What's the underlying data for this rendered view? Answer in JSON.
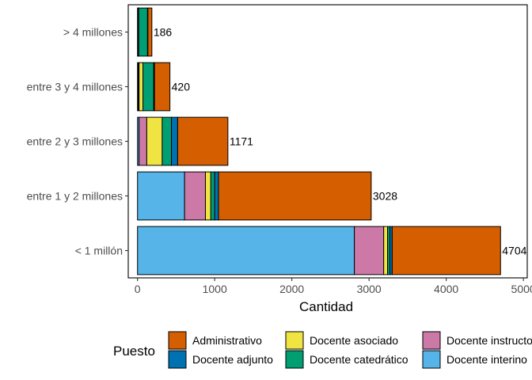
{
  "chart_data": {
    "type": "bar",
    "orientation": "horizontal",
    "stacked": true,
    "xlabel": "Cantidad",
    "ylabel": "",
    "xlim": [
      -120,
      5050
    ],
    "xticks": [
      0,
      1000,
      2000,
      3000,
      4000,
      5000
    ],
    "xtick_labels": [
      "0",
      "1000",
      "2000",
      "3000",
      "4000",
      "5000"
    ],
    "grid": false,
    "categories": [
      "< 1 millón",
      "entre 1 y 2 millones",
      "entre 2 y 3 millones",
      "entre 3 y 4 millones",
      "> 4 millones"
    ],
    "totals": [
      4704,
      3028,
      1171,
      420,
      186
    ],
    "total_labels": [
      "4704",
      "3028",
      "1171",
      "420",
      "186"
    ],
    "series": [
      {
        "name": "Docente interino",
        "color": "#56B4E9",
        "values": [
          2810,
          610,
          20,
          10,
          5
        ]
      },
      {
        "name": "Docente instructor",
        "color": "#CC79A7",
        "values": [
          380,
          270,
          100,
          10,
          5
        ]
      },
      {
        "name": "Docente asociado",
        "color": "#F0E442",
        "values": [
          50,
          70,
          200,
          50,
          5
        ]
      },
      {
        "name": "Docente catedrático",
        "color": "#009E73",
        "values": [
          30,
          50,
          120,
          140,
          115
        ]
      },
      {
        "name": "Docente adjunto",
        "color": "#0072B2",
        "values": [
          30,
          50,
          80,
          10,
          5
        ]
      },
      {
        "name": "Administrativo",
        "color": "#D55E00",
        "values": [
          1404,
          1978,
          651,
          200,
          51
        ]
      }
    ],
    "legend": {
      "title": "Puesto",
      "position": "bottom",
      "entries": [
        {
          "label": "Administrativo",
          "color": "#D55E00"
        },
        {
          "label": "Docente adjunto",
          "color": "#0072B2"
        },
        {
          "label": "Docente asociado",
          "color": "#F0E442"
        },
        {
          "label": "Docente catedrático",
          "color": "#009E73"
        },
        {
          "label": "Docente instructor",
          "color": "#CC79A7"
        },
        {
          "label": "Docente interino",
          "color": "#56B4E9"
        }
      ]
    }
  }
}
